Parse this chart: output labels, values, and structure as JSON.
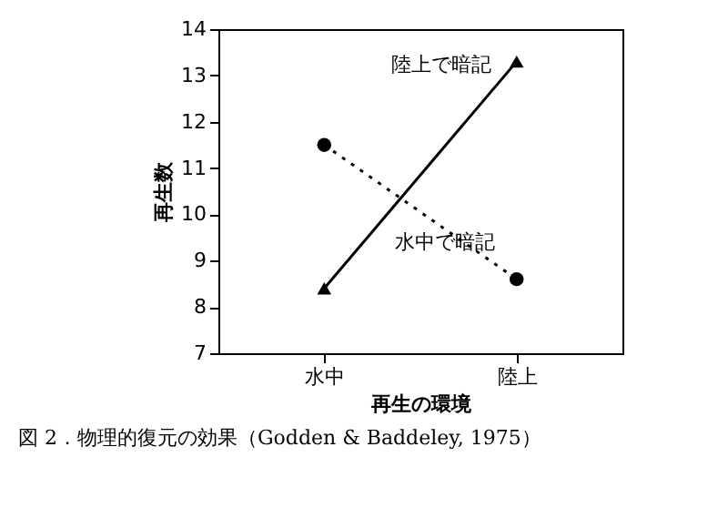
{
  "chart_data": {
    "type": "line",
    "xlabel": "再生の環境",
    "ylabel": "再生数",
    "categories": [
      "水中",
      "陸上"
    ],
    "series": [
      {
        "name": "陸上で暗記",
        "color": "#000000",
        "values": [
          8.4,
          13.3
        ],
        "marker": "triangle",
        "line_style": "solid"
      },
      {
        "name": "水中で暗記",
        "color": "#000000",
        "values": [
          11.5,
          8.6
        ],
        "marker": "circle",
        "line_style": "dotted"
      }
    ],
    "ylim": [
      7,
      14
    ],
    "yticks": [
      7,
      8,
      9,
      10,
      11,
      12,
      13,
      14
    ],
    "grid": false,
    "annotations": [
      "図 2．物理的復元の効果（Godden & Baddeley, 1975）"
    ]
  }
}
